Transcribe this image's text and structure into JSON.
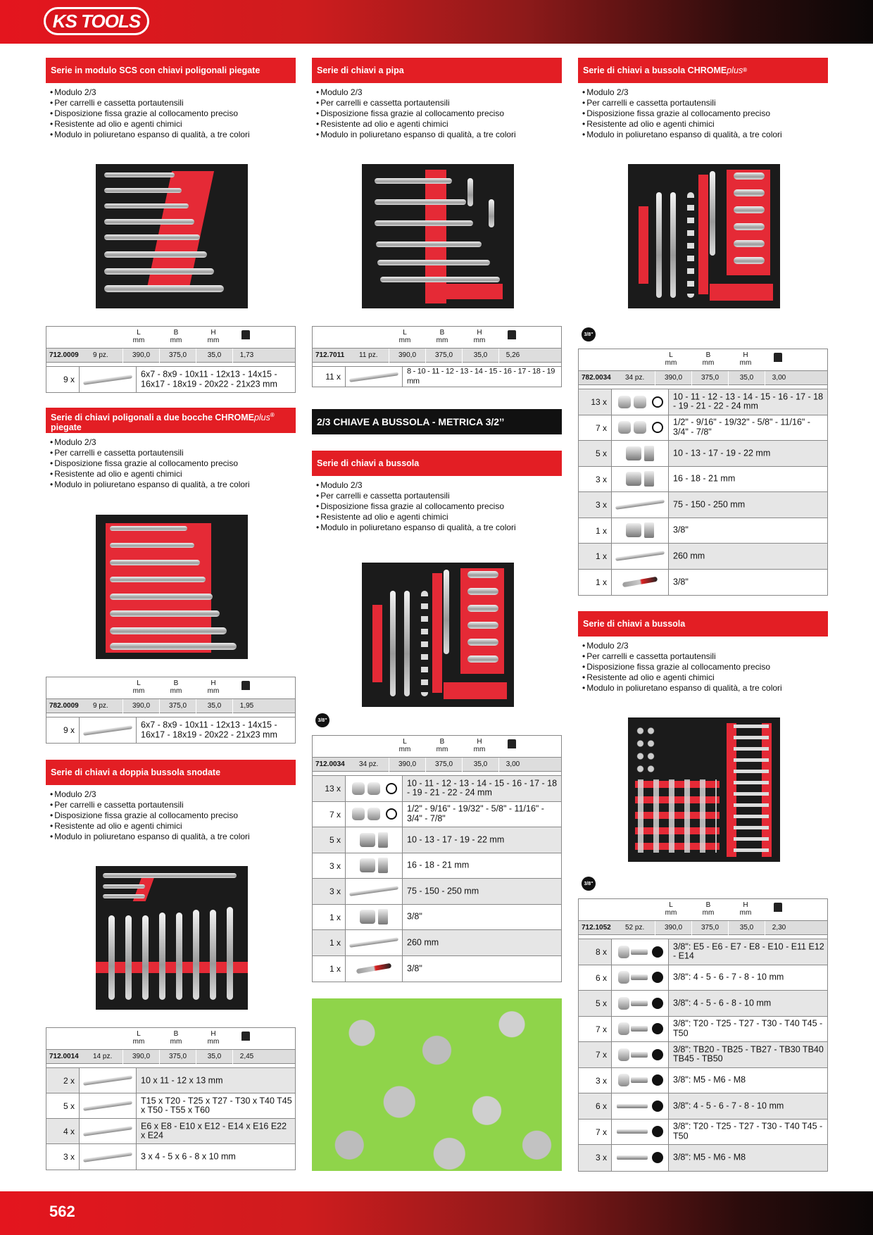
{
  "brand": "KS TOOLS",
  "page_number": "562",
  "common_features": [
    "Modulo 2/3",
    "Per carrelli e cassetta portautensili",
    "Disposizione fissa grazie al collocamento preciso",
    "Resistente ad olio e agenti chimici",
    "Modulo in poliuretano espanso di qualità, a tre colori"
  ],
  "col_headers": {
    "L": "L",
    "B": "B",
    "H": "H",
    "unit": "mm"
  },
  "badge": "3/8\"",
  "s1": {
    "title": "Serie in modulo SCS con chiavi poligonali piegate",
    "row": {
      "code": "712.0009",
      "pcs": "9 pz.",
      "L": "390,0",
      "B": "375,0",
      "H": "35,0",
      "kg": "1,73"
    },
    "items": [
      {
        "qty": "9 x",
        "desc": "6x7 - 8x9 - 10x11 - 12x13 - 14x15 - 16x17 - 18x19 - 20x22 - 21x23 mm"
      }
    ]
  },
  "s2": {
    "title_main": "Serie di chiavi poligonali a due bocche CHROME",
    "title_italic": "plus",
    "title_reg": "®",
    "title_line2": "piegate",
    "row": {
      "code": "782.0009",
      "pcs": "9 pz.",
      "L": "390,0",
      "B": "375,0",
      "H": "35,0",
      "kg": "1,95"
    },
    "items": [
      {
        "qty": "9 x",
        "desc": "6x7 - 8x9 - 10x11 - 12x13 - 14x15 - 16x17 - 18x19 - 20x22 - 21x23 mm"
      }
    ]
  },
  "s3": {
    "title": "Serie di chiavi a doppia bussola snodate",
    "row": {
      "code": "712.0014",
      "pcs": "14 pz.",
      "L": "390,0",
      "B": "375,0",
      "H": "35,0",
      "kg": "2,45"
    },
    "items": [
      {
        "qty": "2 x",
        "desc": "10 x 11 - 12 x 13 mm"
      },
      {
        "qty": "5 x",
        "desc": "T15 x T20 - T25 x T27 - T30 x T40 T45 x T50 - T55 x T60"
      },
      {
        "qty": "4 x",
        "desc": "E6 x E8 - E10 x E12 - E14 x E16 E22 x E24"
      },
      {
        "qty": "3 x",
        "desc": "3 x 4 - 5 x 6 - 8 x 10 mm"
      }
    ]
  },
  "s4": {
    "title": "Serie di chiavi a pipa",
    "row": {
      "code": "712.7011",
      "pcs": "11 pz.",
      "L": "390,0",
      "B": "375,0",
      "H": "35,0",
      "kg": "5,26"
    },
    "items": [
      {
        "qty": "11 x",
        "desc": "8 - 10 - 11 - 12 - 13 - 14 - 15 - 16 - 17 - 18 - 19 mm"
      }
    ]
  },
  "banner": "2/3 CHIAVE A BUSSOLA - METRICA 3/2’’",
  "s5": {
    "title": "Serie di chiavi a bussola",
    "row": {
      "code": "712.0034",
      "pcs": "34 pz.",
      "L": "390,0",
      "B": "375,0",
      "H": "35,0",
      "kg": "3,00"
    },
    "items": [
      {
        "qty": "13 x",
        "desc": "10 - 11 - 12 - 13 - 14 - 15 - 16 - 17 - 18 - 19 - 21 - 22 - 24 mm"
      },
      {
        "qty": "7 x",
        "desc": "1/2\" - 9/16\" - 19/32\" - 5/8\" - 11/16\" - 3/4\" - 7/8\""
      },
      {
        "qty": "5 x",
        "desc": "10 - 13 - 17 - 19 - 22 mm"
      },
      {
        "qty": "3 x",
        "desc": "16 - 18 - 21 mm"
      },
      {
        "qty": "3 x",
        "desc": "75 - 150 - 250 mm"
      },
      {
        "qty": "1 x",
        "desc": "3/8\""
      },
      {
        "qty": "1 x",
        "desc": "260 mm"
      },
      {
        "qty": "1 x",
        "desc": "3/8\""
      }
    ]
  },
  "s6": {
    "title_main": "Serie di chiavi a bussola CHROME",
    "title_italic": "plus",
    "title_reg": "®",
    "row": {
      "code": "782.0034",
      "pcs": "34 pz.",
      "L": "390,0",
      "B": "375,0",
      "H": "35,0",
      "kg": "3,00"
    },
    "items": [
      {
        "qty": "13 x",
        "desc": "10 - 11 - 12 - 13 - 14 - 15 - 16 - 17 - 18 - 19 - 21 - 22 - 24 mm"
      },
      {
        "qty": "7 x",
        "desc": "1/2\" - 9/16\" - 19/32\" - 5/8\" - 11/16\" - 3/4\" - 7/8\""
      },
      {
        "qty": "5 x",
        "desc": "10 - 13 - 17 - 19 - 22 mm"
      },
      {
        "qty": "3 x",
        "desc": "16 - 18 - 21 mm"
      },
      {
        "qty": "3 x",
        "desc": "75 - 150 - 250 mm"
      },
      {
        "qty": "1 x",
        "desc": "3/8\""
      },
      {
        "qty": "1 x",
        "desc": "260 mm"
      },
      {
        "qty": "1 x",
        "desc": "3/8\""
      }
    ]
  },
  "s7": {
    "title": "Serie di chiavi a bussola",
    "row": {
      "code": "712.1052",
      "pcs": "52 pz.",
      "L": "390,0",
      "B": "375,0",
      "H": "35,0",
      "kg": "2,30"
    },
    "items": [
      {
        "qty": "8 x",
        "desc": "3/8\": E5 - E6 - E7 - E8 - E10 - E11 E12 - E14"
      },
      {
        "qty": "6 x",
        "desc": "3/8\": 4 - 5 - 6 - 7 - 8 - 10 mm"
      },
      {
        "qty": "5 x",
        "desc": "3/8\": 4 - 5 - 6 - 8 - 10 mm"
      },
      {
        "qty": "7 x",
        "desc": "3/8\": T20 - T25  - T27 - T30 - T40 T45 - T50"
      },
      {
        "qty": "7 x",
        "desc": "3/8\": TB20 - TB25  - TB27 - TB30 TB40 TB45 - TB50"
      },
      {
        "qty": "3 x",
        "desc": "3/8\": M5 - M6 - M8"
      },
      {
        "qty": "6 x",
        "desc": "3/8\": 4 - 5 - 6 - 7 - 8 - 10 mm"
      },
      {
        "qty": "7 x",
        "desc": "3/8\": T20 - T25  - T27 - T30 - T40 T45 - T50"
      },
      {
        "qty": "3 x",
        "desc": "3/8\": M5 - M6 - M8"
      }
    ]
  }
}
